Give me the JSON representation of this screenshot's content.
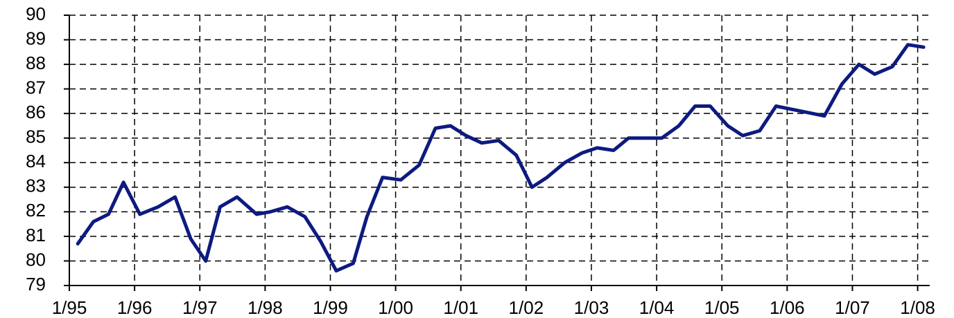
{
  "chart_data": {
    "type": "line",
    "x": [
      1995.13,
      1995.37,
      1995.6,
      1995.83,
      1996.08,
      1996.36,
      1996.62,
      1996.86,
      1997.09,
      1997.31,
      1997.57,
      1997.87,
      1998.08,
      1998.34,
      1998.61,
      1998.85,
      1999.09,
      1999.35,
      1999.56,
      1999.8,
      2000.08,
      2000.36,
      2000.61,
      2000.84,
      2001.08,
      2001.32,
      2001.58,
      2001.85,
      2002.09,
      2002.32,
      2002.59,
      2002.86,
      2003.09,
      2003.34,
      2003.57,
      2003.81,
      2004.08,
      2004.34,
      2004.59,
      2004.82,
      2005.09,
      2005.32,
      2005.58,
      2005.83,
      2006.57,
      2006.84,
      2007.1,
      2007.34,
      2007.61,
      2007.85,
      2008.09
    ],
    "series": [
      {
        "color": "#0d1a80",
        "values": [
          80.7,
          81.6,
          81.9,
          83.2,
          81.9,
          82.2,
          82.6,
          80.9,
          80.0,
          82.2,
          82.6,
          81.9,
          82.0,
          82.2,
          81.8,
          80.8,
          79.6,
          79.9,
          81.8,
          83.4,
          83.3,
          83.9,
          85.4,
          85.5,
          85.1,
          84.8,
          84.9,
          84.3,
          83.0,
          83.4,
          84.0,
          84.4,
          84.6,
          84.5,
          85.0,
          85.0,
          85.0,
          85.5,
          86.3,
          86.3,
          85.5,
          85.1,
          85.3,
          86.3,
          85.9,
          87.2,
          88.0,
          87.6,
          87.9,
          88.8,
          88.7
        ]
      }
    ],
    "xlim": [
      1995,
      2008.1
    ],
    "xticks": [
      {
        "value": 1995,
        "label": "1/95"
      },
      {
        "value": 1996,
        "label": "1/96"
      },
      {
        "value": 1997,
        "label": "1/97"
      },
      {
        "value": 1998,
        "label": "1/98"
      },
      {
        "value": 1999,
        "label": "1/99"
      },
      {
        "value": 2000,
        "label": "1/00"
      },
      {
        "value": 2001,
        "label": "1/01"
      },
      {
        "value": 2002,
        "label": "1/02"
      },
      {
        "value": 2003,
        "label": "1/03"
      },
      {
        "value": 2004,
        "label": "1/04"
      },
      {
        "value": 2005,
        "label": "1/05"
      },
      {
        "value": 2006,
        "label": "1/06"
      },
      {
        "value": 2007,
        "label": "1/07"
      },
      {
        "value": 2008,
        "label": "1/08"
      }
    ],
    "ylim": [
      79,
      90
    ],
    "yticks": [
      79,
      80,
      81,
      82,
      83,
      84,
      85,
      86,
      87,
      88,
      89,
      90
    ],
    "grid": true
  }
}
